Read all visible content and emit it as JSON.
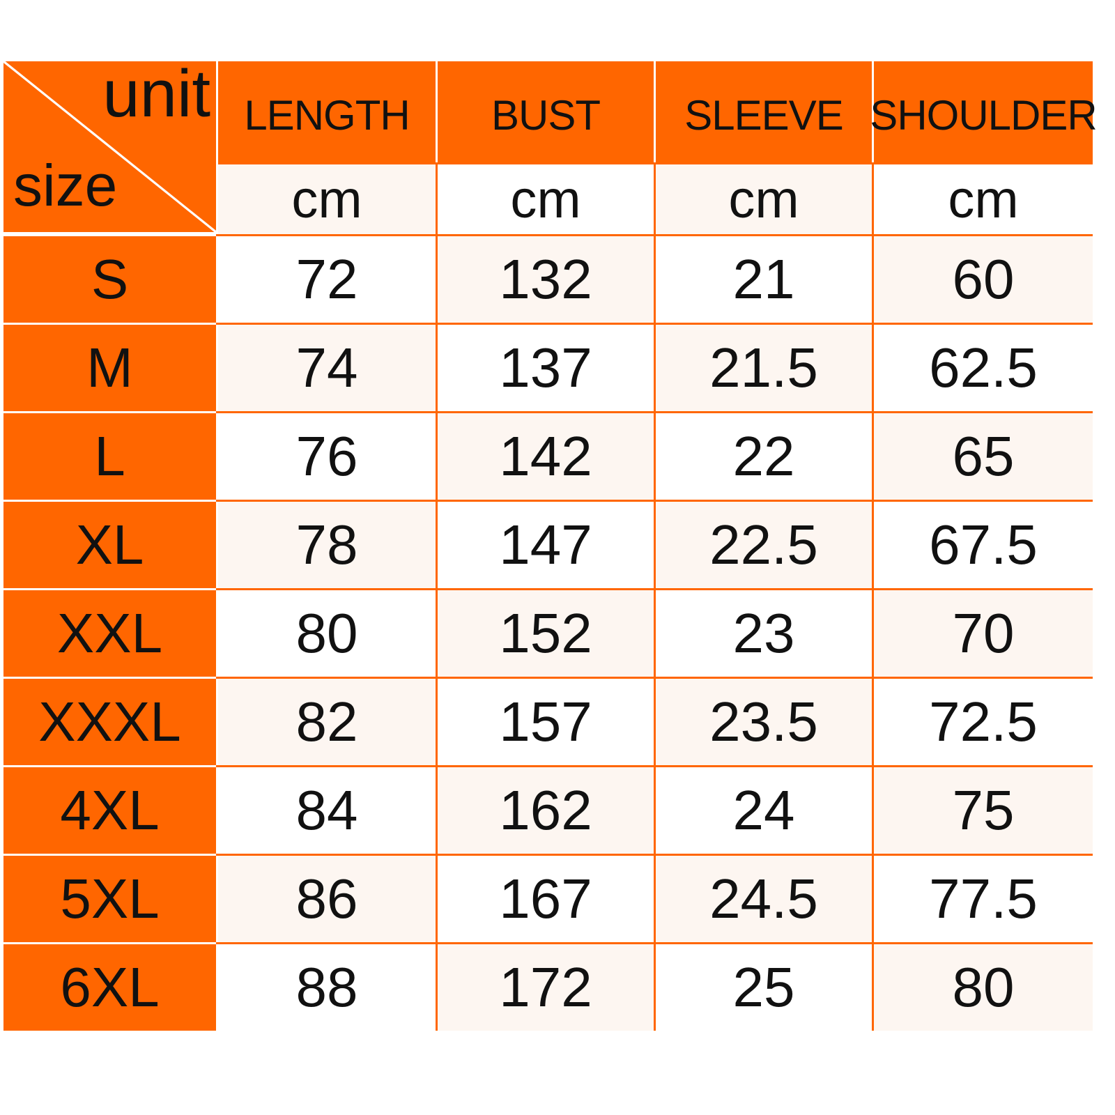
{
  "colors": {
    "accent": "#ff6600",
    "cell_light": "#fdf6f1",
    "cell_white": "#ffffff"
  },
  "corner": {
    "unit_label": "unit",
    "size_label": "size"
  },
  "columns": [
    {
      "header": "LENGTH",
      "unit": "cm"
    },
    {
      "header": "BUST",
      "unit": "cm"
    },
    {
      "header": "SLEEVE",
      "unit": "cm"
    },
    {
      "header": "SHOULDER",
      "unit": "cm"
    }
  ],
  "rows": [
    {
      "size": "S",
      "values": [
        "72",
        "132",
        "21",
        "60"
      ]
    },
    {
      "size": "M",
      "values": [
        "74",
        "137",
        "21.5",
        "62.5"
      ]
    },
    {
      "size": "L",
      "values": [
        "76",
        "142",
        "22",
        "65"
      ]
    },
    {
      "size": "XL",
      "values": [
        "78",
        "147",
        "22.5",
        "67.5"
      ]
    },
    {
      "size": "XXL",
      "values": [
        "80",
        "152",
        "23",
        "70"
      ]
    },
    {
      "size": "XXXL",
      "values": [
        "82",
        "157",
        "23.5",
        "72.5"
      ]
    },
    {
      "size": "4XL",
      "values": [
        "84",
        "162",
        "24",
        "75"
      ]
    },
    {
      "size": "5XL",
      "values": [
        "86",
        "167",
        "24.5",
        "77.5"
      ]
    },
    {
      "size": "6XL",
      "values": [
        "88",
        "172",
        "25",
        "80"
      ]
    }
  ]
}
